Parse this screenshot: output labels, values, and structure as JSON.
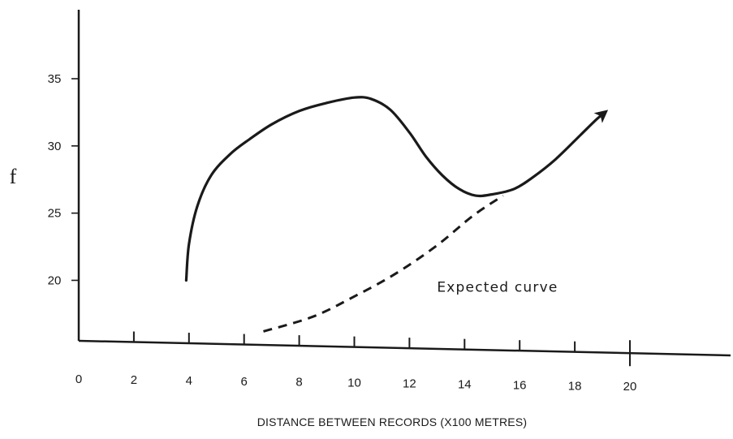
{
  "chart_data": {
    "type": "line",
    "title": "",
    "xlabel": "DISTANCE BETWEEN RECORDS (X100 METRES)",
    "ylabel": "f",
    "xlim": [
      0,
      20
    ],
    "ylim": [
      15.5,
      40
    ],
    "grid": false,
    "x_ticks": [
      "0",
      "2",
      "4",
      "6",
      "8",
      "10",
      "12",
      "14",
      "16",
      "18",
      "20"
    ],
    "y_ticks": [
      "20",
      "25",
      "30",
      "35"
    ],
    "series": [
      {
        "style": "solid",
        "end_marker": "arrow",
        "color": "#1a1a1a",
        "points": [
          [
            3.9,
            20.0
          ],
          [
            4.0,
            22.7
          ],
          [
            4.3,
            25.5
          ],
          [
            4.8,
            27.8
          ],
          [
            5.5,
            29.4
          ],
          [
            6.2,
            30.5
          ],
          [
            7.0,
            31.6
          ],
          [
            8.0,
            32.6
          ],
          [
            9.0,
            33.2
          ],
          [
            10.0,
            33.6
          ],
          [
            10.6,
            33.5
          ],
          [
            11.3,
            32.7
          ],
          [
            12.0,
            31.0
          ],
          [
            12.6,
            29.2
          ],
          [
            13.2,
            27.8
          ],
          [
            13.8,
            26.8
          ],
          [
            14.4,
            26.3
          ],
          [
            15.0,
            26.4
          ],
          [
            15.8,
            26.8
          ],
          [
            16.5,
            27.7
          ],
          [
            17.3,
            29.0
          ],
          [
            18.2,
            30.8
          ],
          [
            18.8,
            32.0
          ],
          [
            19.1,
            32.5
          ]
        ]
      },
      {
        "style": "dashed",
        "color": "#1a1a1a",
        "points": [
          [
            6.7,
            16.2
          ],
          [
            8.5,
            17.3
          ],
          [
            10.0,
            18.8
          ],
          [
            11.5,
            20.5
          ],
          [
            13.0,
            22.6
          ],
          [
            14.3,
            24.8
          ],
          [
            15.4,
            26.3
          ]
        ]
      }
    ],
    "annotations": [
      {
        "text": "Expected curve",
        "x": 13.0,
        "y": 19.5
      }
    ]
  }
}
